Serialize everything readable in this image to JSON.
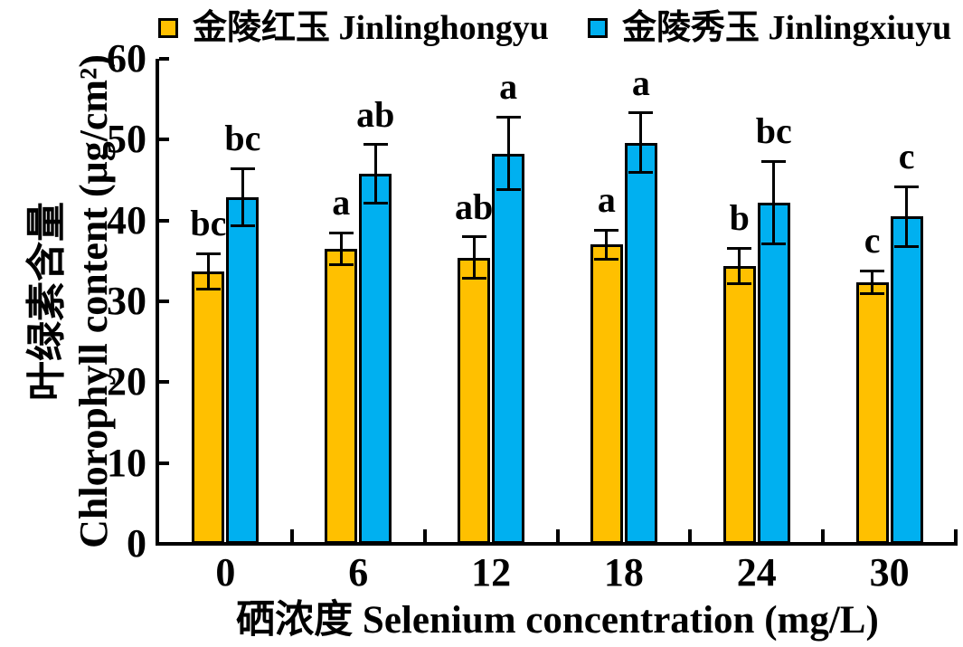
{
  "legend": {
    "items": [
      {
        "label": "金陵红玉 Jinlinghongyu",
        "color": "#FFC000",
        "swatch": "orange-square"
      },
      {
        "label": "金陵秀玉 Jinlingxiuyu",
        "color": "#00B0F0",
        "swatch": "blue-square"
      }
    ]
  },
  "axes": {
    "y_label_line1": "叶绿素含量",
    "y_label_line2": "Chlorophyll content (μg/cm²)",
    "x_label": "硒浓度 Selenium concentration (mg/L)",
    "y_ticks": [
      0,
      10,
      20,
      30,
      40,
      50,
      60
    ]
  },
  "chart_data": {
    "type": "bar",
    "title": "",
    "xlabel": "硒浓度 Selenium concentration (mg/L)",
    "ylabel": "叶绿素含量 Chlorophyll content (μg/cm²)",
    "ylim": [
      0,
      60
    ],
    "y_tick_step": 10,
    "grid": false,
    "legend_position": "top",
    "error_bars": true,
    "categories": [
      "0",
      "6",
      "12",
      "18",
      "24",
      "30"
    ],
    "series": [
      {
        "name": "金陵红玉 Jinlinghongyu",
        "color": "#FFC000",
        "values": [
          33.7,
          36.5,
          35.4,
          37.0,
          34.4,
          32.4
        ],
        "errors": [
          2.2,
          2.0,
          2.6,
          1.8,
          2.2,
          1.4
        ],
        "sig_letters": [
          "bc",
          "a",
          "ab",
          "a",
          "b",
          "c"
        ]
      },
      {
        "name": "金陵秀玉 Jinlingxiuyu",
        "color": "#00B0F0",
        "values": [
          42.9,
          45.8,
          48.3,
          49.6,
          42.2,
          40.5
        ],
        "errors": [
          3.5,
          3.6,
          4.5,
          3.7,
          5.1,
          3.7
        ],
        "sig_letters": [
          "bc",
          "ab",
          "a",
          "a",
          "bc",
          "c"
        ]
      }
    ]
  }
}
